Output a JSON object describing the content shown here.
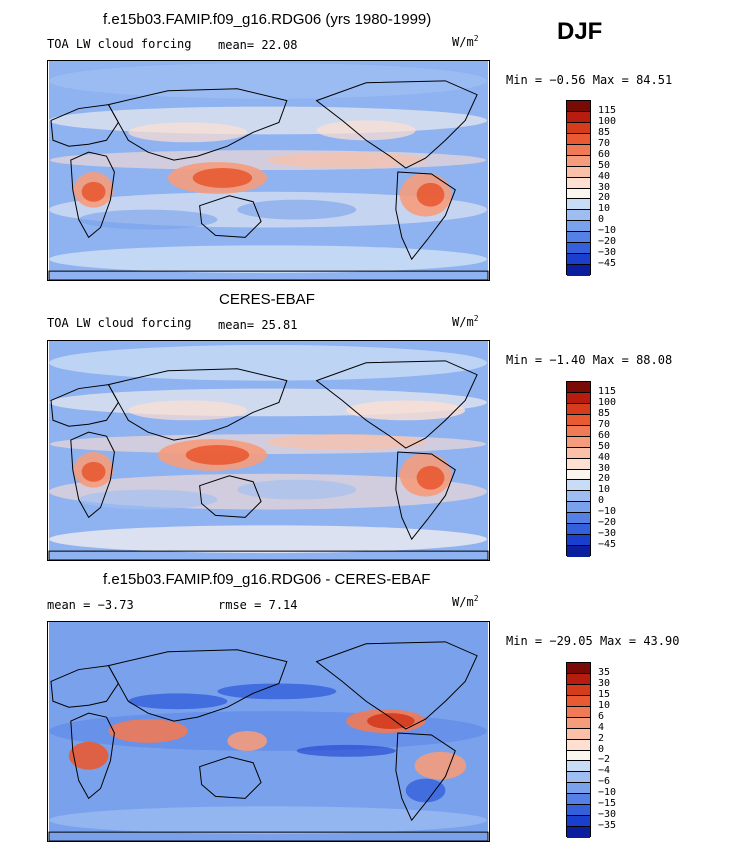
{
  "season": "DJF",
  "panels": [
    {
      "title": "f.e15b03.FAMIP.f09_g16.RDG06 (yrs 1980-1999)",
      "left_label": "TOA LW cloud forcing",
      "stat_label": "mean=",
      "stat_value": "22.08",
      "unit": "W/m",
      "unit_exp": "2",
      "min_label": "Min =",
      "min_value": "−0.56",
      "max_label": "Max =",
      "max_value": "84.51",
      "levels": [
        "115",
        "100",
        "85",
        "70",
        "60",
        "50",
        "40",
        "30",
        "20",
        "10",
        "0",
        "−10",
        "−20",
        "−30",
        "−45"
      ]
    },
    {
      "title": "CERES-EBAF",
      "left_label": "TOA LW cloud forcing",
      "stat_label": "mean=",
      "stat_value": "25.81",
      "unit": "W/m",
      "unit_exp": "2",
      "min_label": "Min =",
      "min_value": "−1.40",
      "max_label": "Max =",
      "max_value": "88.08",
      "levels": [
        "115",
        "100",
        "85",
        "70",
        "60",
        "50",
        "40",
        "30",
        "20",
        "10",
        "0",
        "−10",
        "−20",
        "−30",
        "−45"
      ]
    },
    {
      "title": "f.e15b03.FAMIP.f09_g16.RDG06 - CERES-EBAF",
      "mean_label": "mean =",
      "mean_value": "−3.73",
      "rmse_label": "rmse =",
      "rmse_value": "7.14",
      "unit": "W/m",
      "unit_exp": "2",
      "min_label": "Min =",
      "min_value": "−29.05",
      "max_label": "Max =",
      "max_value": "43.90",
      "levels": [
        "35",
        "30",
        "15",
        "10",
        "6",
        "4",
        "2",
        "0",
        "−2",
        "−4",
        "−6",
        "−10",
        "−15",
        "−30",
        "−35"
      ]
    }
  ],
  "colors": {
    "scale": [
      "#7a0a06",
      "#b81c0e",
      "#d63b1c",
      "#e95a33",
      "#f07a55",
      "#f59c7c",
      "#fbc0a8",
      "#fde0d2",
      "#fbf5ef",
      "#c8dcf5",
      "#9ebef2",
      "#7aa2ec",
      "#5580e6",
      "#3560dc",
      "#1a3fcf",
      "#0b1f9e"
    ],
    "ocean": "#8fb2f0",
    "land_outline": "#000000"
  },
  "chart_data": [
    {
      "type": "heatmap",
      "title": "f.e15b03.FAMIP.f09_g16.RDG06 (yrs 1980-1999)",
      "variable": "TOA LW cloud forcing",
      "units": "W/m2",
      "mean": 22.08,
      "min": -0.56,
      "max": 84.51,
      "contour_levels": [
        -45,
        -30,
        -20,
        -10,
        0,
        10,
        20,
        30,
        40,
        50,
        60,
        70,
        85,
        100,
        115
      ]
    },
    {
      "type": "heatmap",
      "title": "CERES-EBAF",
      "variable": "TOA LW cloud forcing",
      "units": "W/m2",
      "mean": 25.81,
      "min": -1.4,
      "max": 88.08,
      "contour_levels": [
        -45,
        -30,
        -20,
        -10,
        0,
        10,
        20,
        30,
        40,
        50,
        60,
        70,
        85,
        100,
        115
      ]
    },
    {
      "type": "heatmap",
      "title": "f.e15b03.FAMIP.f09_g16.RDG06 - CERES-EBAF",
      "units": "W/m2",
      "mean": -3.73,
      "rmse": 7.14,
      "min": -29.05,
      "max": 43.9,
      "contour_levels": [
        -35,
        -30,
        -15,
        -10,
        -6,
        -4,
        -2,
        0,
        2,
        4,
        6,
        10,
        15,
        30,
        35
      ]
    }
  ]
}
